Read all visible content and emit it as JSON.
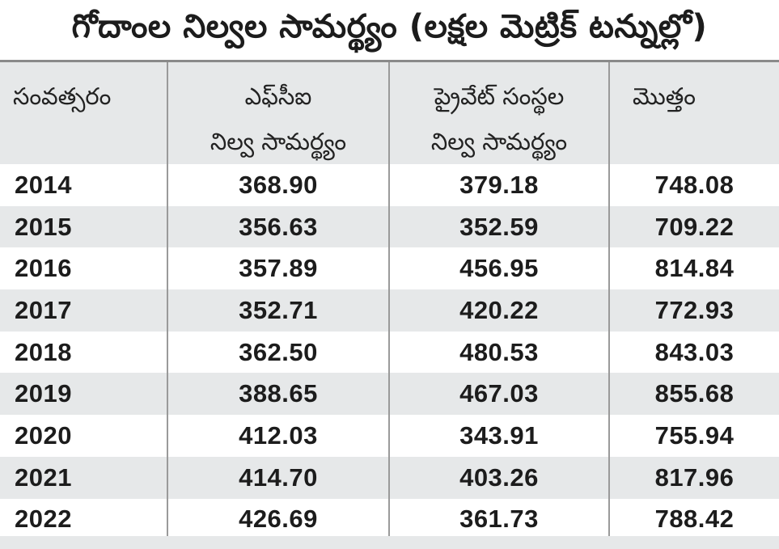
{
  "title": "గోదాంల నిల్వల సామర్థ్యం (లక్షల మెట్రిక్ టన్నుల్లో)",
  "headers": {
    "year": "సంవత్సరం",
    "fci_line1": "ఎఫ్‌సీఐ",
    "fci_line2": "నిల్వ సామర్థ్యం",
    "private_line1": "ప్రైవేట్ సంస్థల",
    "private_line2": "నిల్వ సామర్థ్యం",
    "total": "మొత్తం"
  },
  "rows": [
    {
      "year": "2014",
      "fci": "368.90",
      "private": "379.18",
      "total": "748.08"
    },
    {
      "year": "2015",
      "fci": "356.63",
      "private": "352.59",
      "total": "709.22"
    },
    {
      "year": "2016",
      "fci": "357.89",
      "private": "456.95",
      "total": "814.84"
    },
    {
      "year": "2017",
      "fci": "352.71",
      "private": "420.22",
      "total": "772.93"
    },
    {
      "year": "2018",
      "fci": "362.50",
      "private": "480.53",
      "total": "843.03"
    },
    {
      "year": "2019",
      "fci": "388.65",
      "private": "467.03",
      "total": "855.68"
    },
    {
      "year": "2020",
      "fci": "412.03",
      "private": "343.91",
      "total": "755.94"
    },
    {
      "year": "2021",
      "fci": "414.70",
      "private": "403.26",
      "total": "817.96"
    },
    {
      "year": "2022",
      "fci": "426.69",
      "private": "361.73",
      "total": "788.42"
    }
  ]
}
